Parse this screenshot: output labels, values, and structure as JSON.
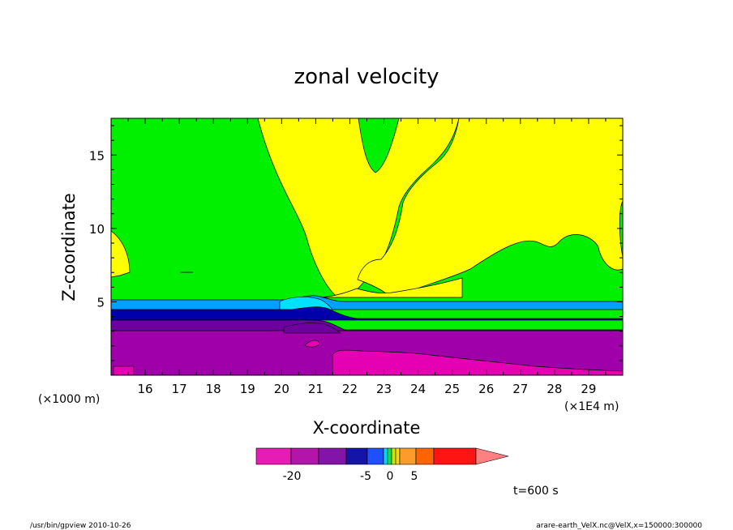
{
  "chart_data": {
    "type": "heatmap",
    "title": "zonal velocity",
    "xlabel": "X-coordinate",
    "ylabel": "Z-coordinate",
    "x_unit_left": "(×1000 m)",
    "x_unit_right": "(×1E4 m)",
    "xlim": [
      15.0,
      30.0
    ],
    "ylim": [
      0.0,
      17.5
    ],
    "x_ticks": [
      "16",
      "17",
      "18",
      "19",
      "20",
      "21",
      "22",
      "23",
      "24",
      "25",
      "26",
      "27",
      "28",
      "29"
    ],
    "y_ticks": [
      "5",
      "10",
      "15"
    ],
    "colorbar": {
      "tick_labels": [
        "-20",
        "-5",
        "0",
        "5"
      ],
      "colors": [
        "#e61cb4",
        "#b414aa",
        "#8214aa",
        "#1414aa",
        "#1e50ff",
        "#00d2ff",
        "#00e650",
        "#c8e600",
        "#ffd700",
        "#ff9b28",
        "#ff6400",
        "#ff1414",
        "#ff8080"
      ]
    },
    "regions": [
      {
        "color": "#00f000"
      },
      {
        "color": "#ffff00"
      },
      {
        "color": "#00a0ff"
      },
      {
        "color": "#0000aa"
      },
      {
        "color": "#6e00a0"
      },
      {
        "color": "#a000aa"
      },
      {
        "color": "#e600b4"
      }
    ],
    "time_label": "t=600 s"
  },
  "footer": {
    "left": "/usr/bin/gpview   2010-10-26",
    "right": "arare-earth_VelX.nc@VelX,x=150000:300000"
  }
}
